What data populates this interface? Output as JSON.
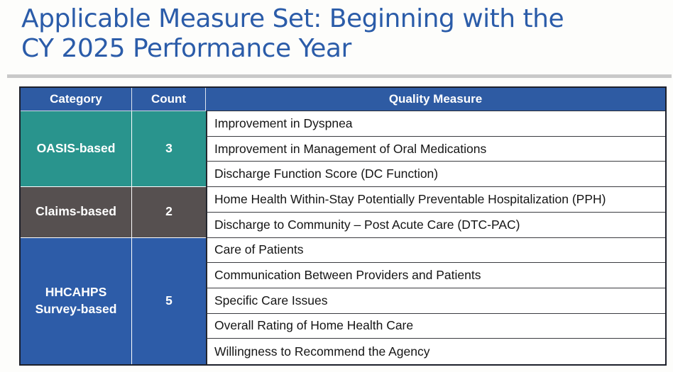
{
  "page": {
    "title_line1": "Applicable Measure Set: Beginning with the",
    "title_line2": "CY 2025 Performance Year"
  },
  "colors": {
    "title_blue": "#2b5ca9",
    "divider_gray": "#c9c9c9",
    "header_blue": "#2e5ba3",
    "teal": "#29948d",
    "dark_gray": "#565050",
    "body_blue": "#2d5ca8"
  },
  "table": {
    "headers": [
      "Category",
      "Count",
      "Quality Measure"
    ],
    "sections": [
      {
        "category": "OASIS-based",
        "count": "3",
        "color": "#29948d",
        "measures": [
          "Improvement in Dyspnea",
          "Improvement in Management of Oral Medications",
          "Discharge Function Score (DC Function)"
        ]
      },
      {
        "category": "Claims-based",
        "count": "2",
        "color": "#565050",
        "measures": [
          "Home Health Within-Stay Potentially Preventable Hospitalization (PPH)",
          "Discharge to Community – Post Acute Care (DTC-PAC)"
        ]
      },
      {
        "category": "HHCAHPS Survey-based",
        "count": "5",
        "color": "#2d5ca8",
        "measures": [
          "Care of Patients",
          "Communication Between Providers and Patients",
          "Specific Care Issues",
          "Overall Rating of Home Health Care",
          "Willingness to Recommend the Agency"
        ]
      }
    ]
  }
}
